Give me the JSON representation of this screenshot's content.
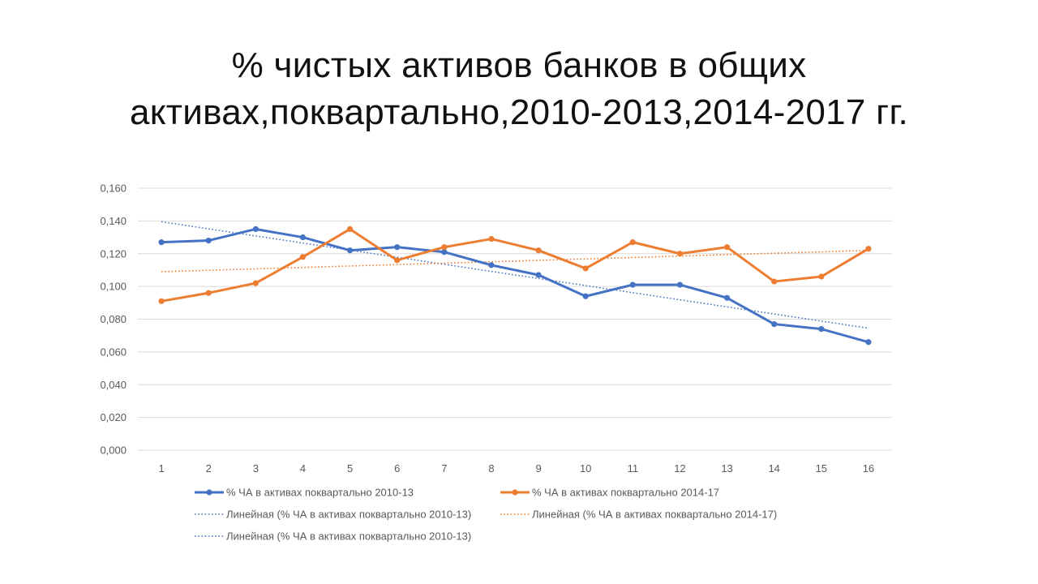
{
  "title_lines": [
    "% чистых активов банков в общих",
    "активах,поквартально,2010-2013,2014-2017 гг."
  ],
  "chart_data": {
    "type": "line",
    "title": "% чистых активов банков в общих активах,поквартально,2010-2013,2014-2017 гг.",
    "categories": [
      "1",
      "2",
      "3",
      "4",
      "5",
      "6",
      "7",
      "8",
      "9",
      "10",
      "11",
      "12",
      "13",
      "14",
      "15",
      "16"
    ],
    "y_ticks": [
      "0,000",
      "0,020",
      "0,040",
      "0,060",
      "0,080",
      "0,100",
      "0,120",
      "0,140",
      "0,160"
    ],
    "ylim": [
      0,
      0.16
    ],
    "grid": true,
    "legend_position": "bottom",
    "series": [
      {
        "name": "% ЧА в активах поквартально 2010-13",
        "color": "#4472C4",
        "values": [
          0.127,
          0.128,
          0.135,
          0.13,
          0.122,
          0.124,
          0.121,
          0.113,
          0.107,
          0.094,
          0.101,
          0.101,
          0.093,
          0.077,
          0.074,
          0.066
        ]
      },
      {
        "name": "% ЧА в активах поквартально 2014-17",
        "color": "#ED7D31",
        "values": [
          0.091,
          0.096,
          0.102,
          0.118,
          0.135,
          0.116,
          0.124,
          0.129,
          0.122,
          0.111,
          0.127,
          0.12,
          0.124,
          0.103,
          0.106,
          0.123
        ]
      }
    ],
    "trendlines": [
      {
        "name": "Линейная (% ЧА в активах поквартально 2010-13)",
        "color": "#4472C4",
        "start": 0.1395,
        "end": 0.0745
      },
      {
        "name": "Линейная (% ЧА в активах поквартально 2014-17)",
        "color": "#ED7D31",
        "start": 0.109,
        "end": 0.122
      }
    ],
    "legend_entries": [
      {
        "label": "% ЧА в активах поквартально 2010-13",
        "style": "line-marker",
        "color": "#4472C4"
      },
      {
        "label": "% ЧА в активах поквартально 2014-17",
        "style": "line-marker",
        "color": "#ED7D31"
      },
      {
        "label": "Линейная (% ЧА в активах поквартально 2010-13)",
        "style": "dotted",
        "color": "#4472C4"
      },
      {
        "label": "Линейная (% ЧА в активах поквартально 2014-17)",
        "style": "dotted",
        "color": "#ED7D31"
      },
      {
        "label": "Линейная (% ЧА в активах поквартально 2010-13)",
        "style": "dotted",
        "color": "#4472C4"
      }
    ]
  }
}
